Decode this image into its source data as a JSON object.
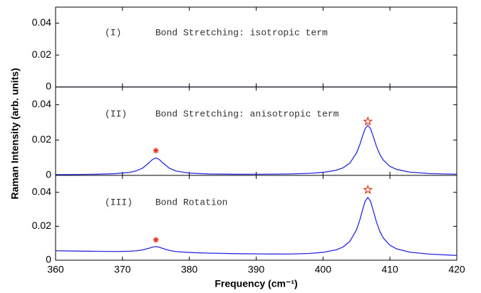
{
  "chart_data": [
    {
      "type": "line",
      "label": "(I)",
      "annotation": "Bond Stretching: isotropic term",
      "xlim": [
        360,
        420
      ],
      "ylim": [
        0,
        0.05
      ],
      "yticks": [
        0,
        0.02,
        0.04
      ],
      "x": [
        360,
        420
      ],
      "series": [
        {
          "color": "#14146e",
          "values": [
            0,
            0
          ]
        }
      ]
    },
    {
      "type": "line",
      "label": "(II)",
      "annotation": "Bond Stretching: anisotropic term",
      "ylabel": "Raman Intensity (arb. units)",
      "xlim": [
        360,
        420
      ],
      "ylim": [
        0,
        0.05
      ],
      "yticks": [
        0,
        0.02,
        0.04
      ],
      "x": [
        360,
        363,
        366,
        369,
        371,
        372,
        373,
        374,
        374.5,
        375,
        375.5,
        376,
        377,
        378,
        380,
        383,
        387,
        391,
        395,
        398,
        400,
        402,
        403,
        404,
        405,
        405.5,
        406,
        406.3,
        406.7,
        407.1,
        407.5,
        408,
        408.5,
        409,
        410,
        411,
        413,
        416,
        420
      ],
      "series": [
        {
          "color": "#2a2ae0",
          "values": [
            0.00044,
            0.0005,
            0.00063,
            0.00098,
            0.00166,
            0.00245,
            0.00406,
            0.00719,
            0.009,
            0.00986,
            0.009,
            0.0072,
            0.00408,
            0.00248,
            0.00127,
            0.00078,
            0.00063,
            0.00065,
            0.00081,
            0.00116,
            0.00168,
            0.00292,
            0.00429,
            0.00693,
            0.01259,
            0.0174,
            0.02332,
            0.02647,
            0.02833,
            0.02647,
            0.0221,
            0.0163,
            0.0118,
            0.0087,
            0.0051,
            0.0034,
            0.0018,
            0.001,
            0.00065
          ]
        }
      ],
      "markers": [
        {
          "x": 375,
          "y": 0.014,
          "symbol": "asterisk"
        },
        {
          "x": 406.7,
          "y": 0.0305,
          "symbol": "star"
        }
      ],
      "marker_color": "#e8331c"
    },
    {
      "type": "line",
      "label": "(III)",
      "annotation": "Bond Rotation",
      "xlabel": "Frequency (cm⁻¹)",
      "xlim": [
        360,
        420
      ],
      "xticks": [
        360,
        370,
        380,
        390,
        400,
        410,
        420
      ],
      "ylim": [
        0,
        0.05
      ],
      "yticks": [
        0,
        0.02,
        0.04
      ],
      "x": [
        360,
        363,
        366,
        369,
        371,
        372,
        373,
        374,
        374.5,
        375,
        375.5,
        376,
        377,
        378,
        380,
        383,
        387,
        391,
        395,
        398,
        400,
        402,
        403,
        404,
        405,
        405.5,
        406,
        406.3,
        406.7,
        407.1,
        407.5,
        408,
        408.5,
        409,
        410,
        411,
        413,
        416,
        420
      ],
      "series": [
        {
          "color": "#2a2ae0",
          "values": [
            0.00558,
            0.00539,
            0.00524,
            0.00516,
            0.00527,
            0.0055,
            0.00602,
            0.0071,
            0.00774,
            0.00802,
            0.00768,
            0.00697,
            0.00576,
            0.0051,
            0.00454,
            0.00416,
            0.00387,
            0.00367,
            0.00362,
            0.004,
            0.00464,
            0.00615,
            0.0078,
            0.01101,
            0.01788,
            0.02372,
            0.03091,
            0.03473,
            0.037,
            0.03473,
            0.02946,
            0.02241,
            0.01694,
            0.01315,
            0.00882,
            0.00669,
            0.00472,
            0.00356,
            0.00282
          ]
        }
      ],
      "markers": [
        {
          "x": 375,
          "y": 0.012,
          "symbol": "asterisk"
        },
        {
          "x": 406.7,
          "y": 0.0415,
          "symbol": "star"
        }
      ],
      "marker_color": "#e8331c"
    }
  ]
}
